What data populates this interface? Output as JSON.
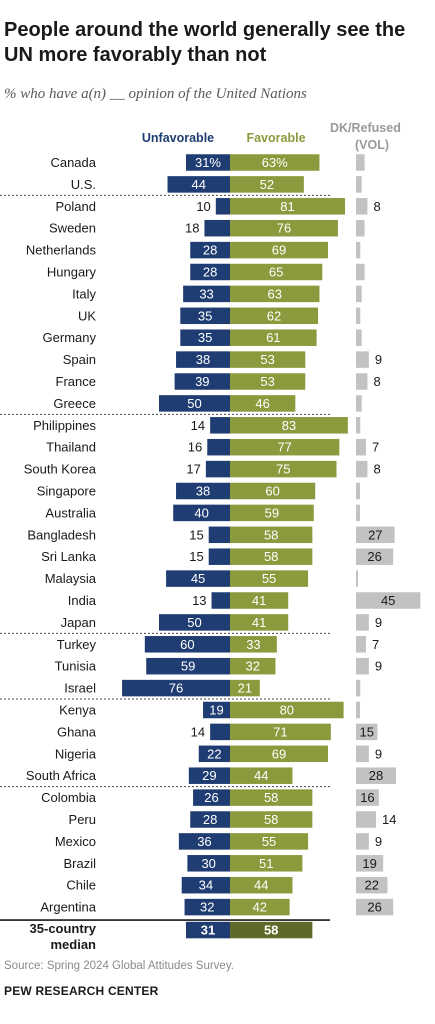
{
  "title": "People around the world generally see the UN more favorably than not",
  "subtitle": "% who have a(n) __ opinion of the United Nations",
  "source": "Source: Spring 2024 Global Attitudes Survey.",
  "brand": "PEW RESEARCH CENTER",
  "colors": {
    "unfavorable": "#1f3d73",
    "favorable": "#8b9a3c",
    "favorable_median": "#5d6a2a",
    "dk": "#c2c2c2",
    "divider": "#444444"
  },
  "chart_data": {
    "type": "bar",
    "series": [
      {
        "name": "Unfavorable"
      },
      {
        "name": "Favorable"
      },
      {
        "name": "DK/Refused (VOL)"
      }
    ],
    "rows": [
      {
        "country": "Canada",
        "unfavorable": 31,
        "favorable": 63,
        "dk": 6,
        "label_suffix": "%"
      },
      {
        "country": "U.S.",
        "unfavorable": 44,
        "favorable": 52,
        "dk": 4
      },
      {
        "country": "Poland",
        "unfavorable": 10,
        "favorable": 81,
        "dk": 8
      },
      {
        "country": "Sweden",
        "unfavorable": 18,
        "favorable": 76,
        "dk": 6
      },
      {
        "country": "Netherlands",
        "unfavorable": 28,
        "favorable": 69,
        "dk": 3
      },
      {
        "country": "Hungary",
        "unfavorable": 28,
        "favorable": 65,
        "dk": 6
      },
      {
        "country": "Italy",
        "unfavorable": 33,
        "favorable": 63,
        "dk": 4
      },
      {
        "country": "UK",
        "unfavorable": 35,
        "favorable": 62,
        "dk": 3
      },
      {
        "country": "Germany",
        "unfavorable": 35,
        "favorable": 61,
        "dk": 4
      },
      {
        "country": "Spain",
        "unfavorable": 38,
        "favorable": 53,
        "dk": 9
      },
      {
        "country": "France",
        "unfavorable": 39,
        "favorable": 53,
        "dk": 8
      },
      {
        "country": "Greece",
        "unfavorable": 50,
        "favorable": 46,
        "dk": 4
      },
      {
        "country": "Philippines",
        "unfavorable": 14,
        "favorable": 83,
        "dk": 3
      },
      {
        "country": "Thailand",
        "unfavorable": 16,
        "favorable": 77,
        "dk": 7
      },
      {
        "country": "South Korea",
        "unfavorable": 17,
        "favorable": 75,
        "dk": 8
      },
      {
        "country": "Singapore",
        "unfavorable": 38,
        "favorable": 60,
        "dk": 2
      },
      {
        "country": "Australia",
        "unfavorable": 40,
        "favorable": 59,
        "dk": 1
      },
      {
        "country": "Bangladesh",
        "unfavorable": 15,
        "favorable": 58,
        "dk": 27
      },
      {
        "country": "Sri Lanka",
        "unfavorable": 15,
        "favorable": 58,
        "dk": 26
      },
      {
        "country": "Malaysia",
        "unfavorable": 45,
        "favorable": 55,
        "dk": 0
      },
      {
        "country": "India",
        "unfavorable": 13,
        "favorable": 41,
        "dk": 45
      },
      {
        "country": "Japan",
        "unfavorable": 50,
        "favorable": 41,
        "dk": 9
      },
      {
        "country": "Turkey",
        "unfavorable": 60,
        "favorable": 33,
        "dk": 7
      },
      {
        "country": "Tunisia",
        "unfavorable": 59,
        "favorable": 32,
        "dk": 9
      },
      {
        "country": "Israel",
        "unfavorable": 76,
        "favorable": 21,
        "dk": 3
      },
      {
        "country": "Kenya",
        "unfavorable": 19,
        "favorable": 80,
        "dk": 1
      },
      {
        "country": "Ghana",
        "unfavorable": 14,
        "favorable": 71,
        "dk": 15
      },
      {
        "country": "Nigeria",
        "unfavorable": 22,
        "favorable": 69,
        "dk": 9
      },
      {
        "country": "South Africa",
        "unfavorable": 29,
        "favorable": 44,
        "dk": 28
      },
      {
        "country": "Colombia",
        "unfavorable": 26,
        "favorable": 58,
        "dk": 16
      },
      {
        "country": "Peru",
        "unfavorable": 28,
        "favorable": 58,
        "dk": 14
      },
      {
        "country": "Mexico",
        "unfavorable": 36,
        "favorable": 55,
        "dk": 9
      },
      {
        "country": "Brazil",
        "unfavorable": 30,
        "favorable": 51,
        "dk": 19
      },
      {
        "country": "Chile",
        "unfavorable": 34,
        "favorable": 44,
        "dk": 22
      },
      {
        "country": "Argentina",
        "unfavorable": 32,
        "favorable": 42,
        "dk": 26
      }
    ],
    "group_breaks_after": [
      "U.S.",
      "Greece",
      "Japan",
      "Israel",
      "South Africa"
    ],
    "median": {
      "label_line1": "35-country",
      "label_line2": "median",
      "unfavorable": 31,
      "favorable": 58
    },
    "dk_labels_shown": [
      "Poland",
      "Spain",
      "France",
      "Thailand",
      "South Korea",
      "Bangladesh",
      "Sri Lanka",
      "India",
      "Japan",
      "Turkey",
      "Tunisia",
      "Ghana",
      "Nigeria",
      "South Africa",
      "Colombia",
      "Peru",
      "Mexico",
      "Brazil",
      "Chile",
      "Argentina"
    ],
    "legend": {
      "unfavorable": "Unfavorable",
      "favorable": "Favorable",
      "dk_line1": "DK/Refused",
      "dk_line2": "(VOL)"
    }
  }
}
